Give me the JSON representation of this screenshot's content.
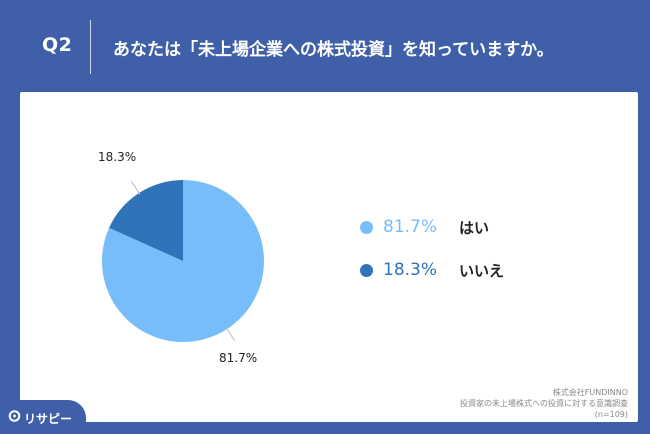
{
  "header": {
    "question_number": "Q2",
    "question_text": "あなたは「未上場企業への株式投資」を知っていますか。"
  },
  "chart_data": {
    "type": "pie",
    "slices": [
      {
        "label": "はい",
        "value": 81.7,
        "display": "81.7%",
        "color": "#77bdfa"
      },
      {
        "label": "いいえ",
        "value": 18.3,
        "display": "18.3%",
        "color": "#2f73b8"
      }
    ]
  },
  "legend": {
    "items": [
      {
        "value": "81.7%",
        "label": "はい",
        "color": "#77bdfa"
      },
      {
        "value": "18.3%",
        "label": "いいえ",
        "color": "#2f73b8"
      }
    ]
  },
  "source": {
    "company": "株式会社FUNDINNO",
    "survey": "投資家の未上場株式への投資に対する意識調査",
    "sample": "(n=109)"
  },
  "logo": {
    "text": "リサピー",
    "icon": "risapi-logo-icon"
  }
}
